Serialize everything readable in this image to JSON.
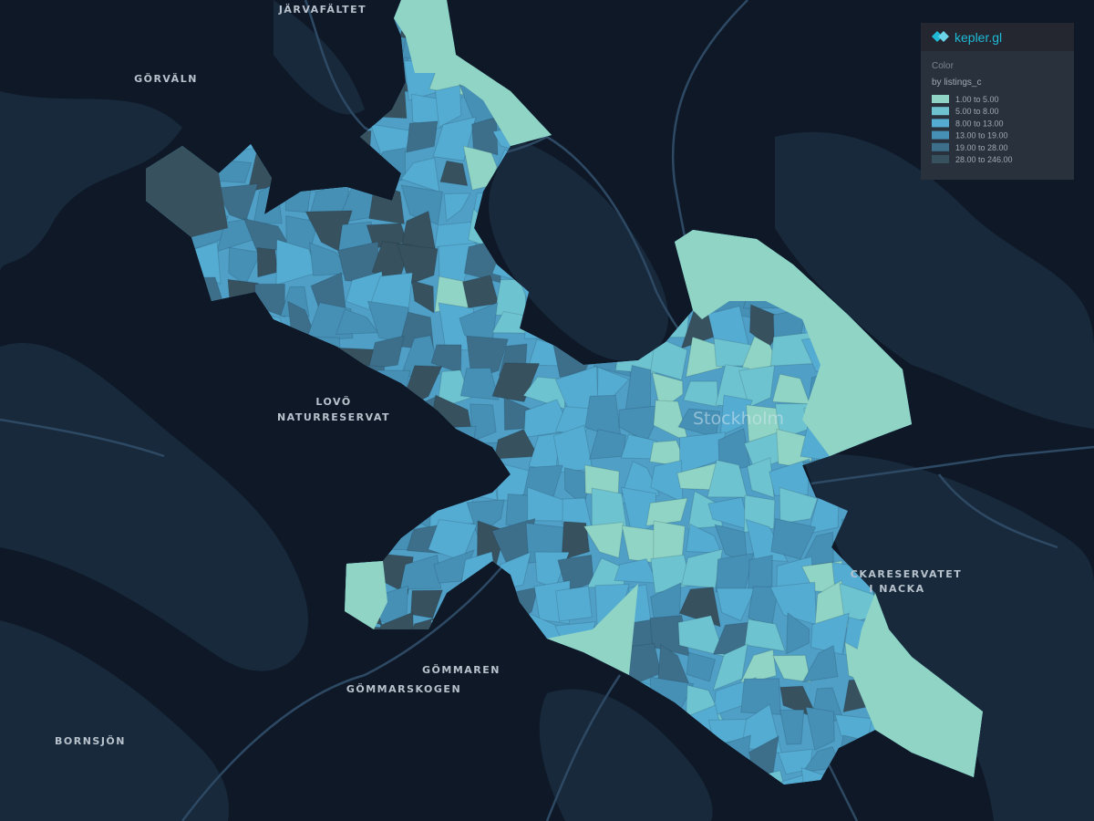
{
  "map": {
    "labels": {
      "jarvafaltet": "JÄRVAFÄLTET",
      "gorvaln": "GÖRVÄLN",
      "lovo_1": "LOVÖ",
      "lovo_2": "NATURRESERVAT",
      "stockholm": "Stockholm",
      "nacka_1": "CKARESERVATET",
      "nacka_2": "I NACKA",
      "gommaren": "GÖMMAREN",
      "gommarskogen": "GÖMMARSKOGEN",
      "bornsjon": "BORNSJÖN"
    }
  },
  "legend": {
    "app": "kepler.gl",
    "channel": "Color",
    "field": "by listings_c",
    "items": [
      {
        "label": "1.00 to 5.00",
        "color": "#8fd4c4"
      },
      {
        "label": "5.00 to 8.00",
        "color": "#6ec3d0"
      },
      {
        "label": "8.00 to 13.00",
        "color": "#55acd2"
      },
      {
        "label": "13.00 to 19.00",
        "color": "#4690b6"
      },
      {
        "label": "19.00 to 28.00",
        "color": "#3d6f8b"
      },
      {
        "label": "28.00 to 246.00",
        "color": "#37515f"
      }
    ]
  }
}
